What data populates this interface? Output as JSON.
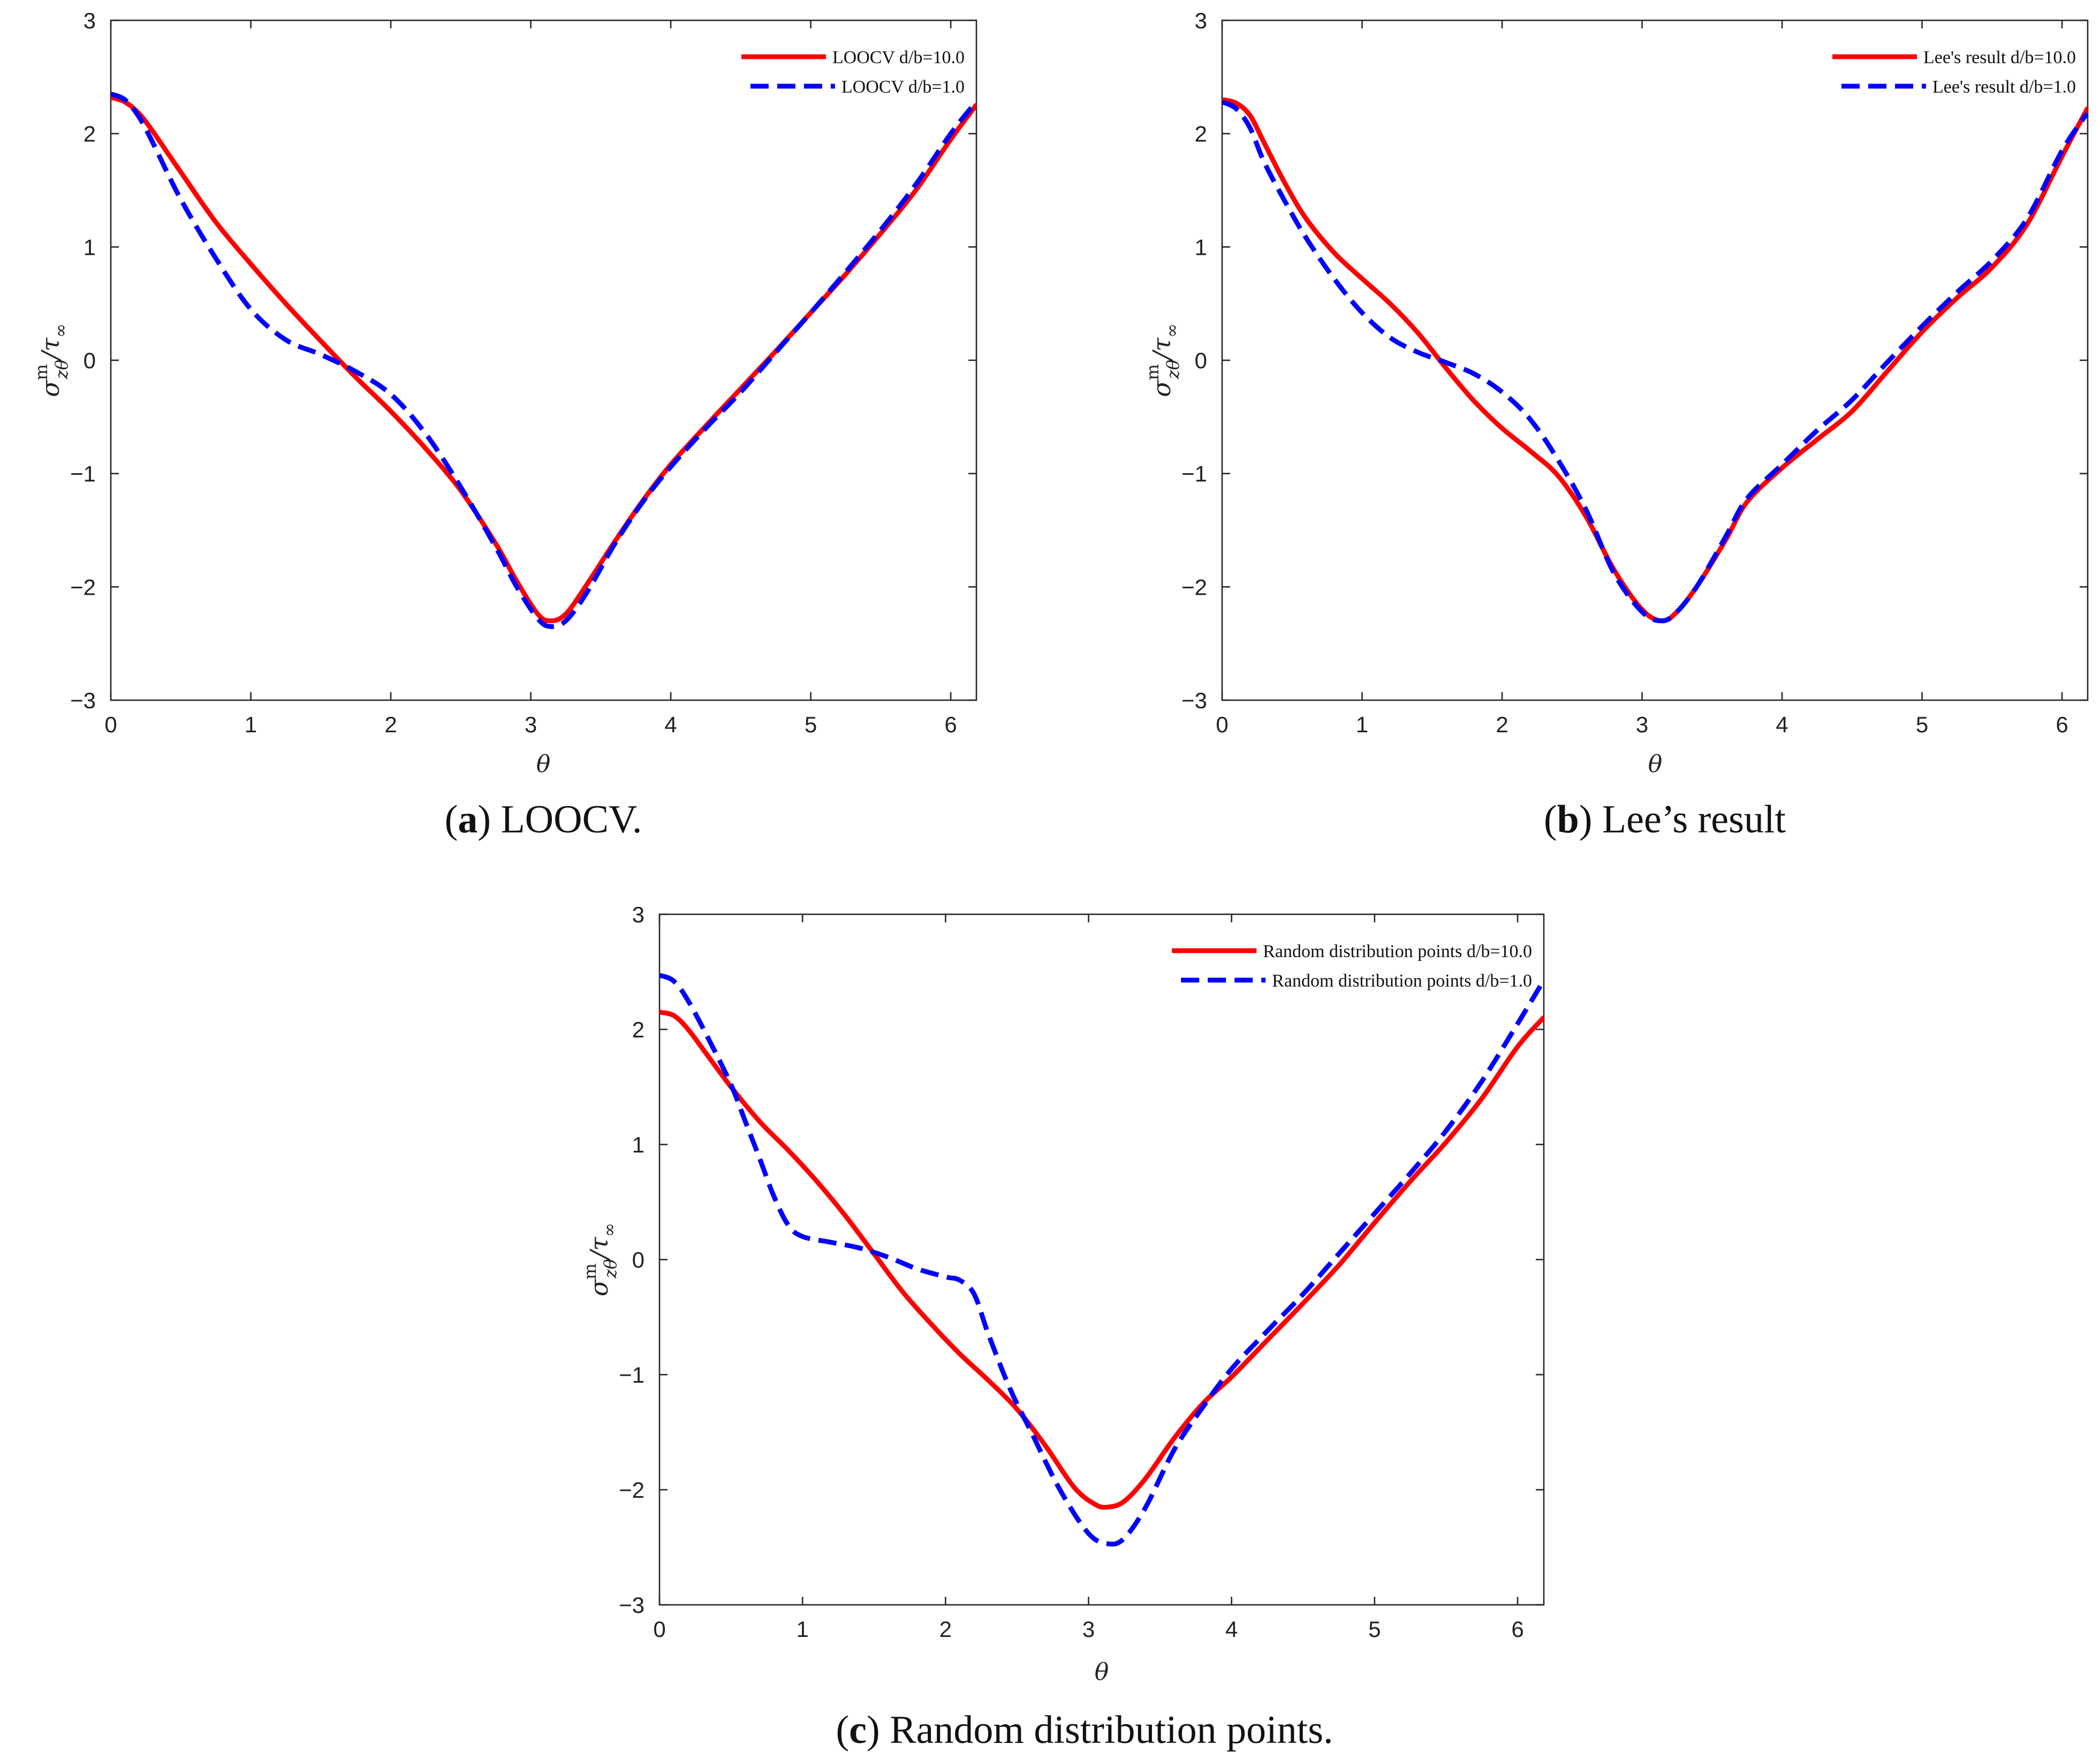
{
  "colors": {
    "solid": "#ff0000",
    "dashed": "#0000ff",
    "axis": "#262626"
  },
  "y_axis_label": {
    "sigma": "σ",
    "superscript": "m",
    "subscript": "zθ",
    "tau": "/τ",
    "tau_sub": "∞"
  },
  "chart_data": [
    {
      "type": "line",
      "caption": {
        "letter": "a",
        "text": "LOOCV."
      },
      "xlabel": "θ",
      "xlim": [
        0,
        6.1832
      ],
      "ylim": [
        -3,
        3
      ],
      "xticks": [
        "0",
        "1",
        "2",
        "3",
        "4",
        "5",
        "6"
      ],
      "yticks": [
        "−3",
        "−2",
        "−1",
        "0",
        "1",
        "2",
        "3"
      ],
      "legend_position": "top-right",
      "series": [
        {
          "name": "LOOCV d/b=10.0",
          "style": "solid",
          "x": [
            0,
            0.1,
            0.2,
            0.3,
            0.5,
            0.75,
            1.0,
            1.25,
            1.5,
            1.75,
            2.0,
            2.25,
            2.5,
            2.75,
            2.9,
            3.05,
            3.14,
            3.25,
            3.4,
            3.6,
            3.8,
            4.0,
            4.25,
            4.5,
            4.75,
            5.0,
            5.25,
            5.5,
            5.75,
            6.0,
            6.18
          ],
          "y": [
            2.32,
            2.28,
            2.18,
            2.02,
            1.66,
            1.22,
            0.85,
            0.5,
            0.17,
            -0.15,
            -0.45,
            -0.78,
            -1.15,
            -1.62,
            -1.95,
            -2.24,
            -2.3,
            -2.24,
            -1.98,
            -1.6,
            -1.24,
            -0.92,
            -0.58,
            -0.25,
            0.08,
            0.42,
            0.76,
            1.12,
            1.5,
            1.95,
            2.25
          ]
        },
        {
          "name": "LOOCV d/b=1.0",
          "style": "dashed",
          "x": [
            0,
            0.1,
            0.2,
            0.3,
            0.5,
            0.75,
            1.0,
            1.25,
            1.5,
            1.75,
            2.0,
            2.25,
            2.5,
            2.75,
            2.9,
            3.05,
            3.14,
            3.25,
            3.4,
            3.6,
            3.8,
            4.0,
            4.25,
            4.5,
            4.75,
            5.0,
            5.25,
            5.5,
            5.75,
            6.0,
            6.18
          ],
          "y": [
            2.35,
            2.3,
            2.15,
            1.92,
            1.42,
            0.9,
            0.45,
            0.18,
            0.05,
            -0.1,
            -0.3,
            -0.65,
            -1.12,
            -1.65,
            -2.0,
            -2.28,
            -2.35,
            -2.3,
            -2.05,
            -1.62,
            -1.25,
            -0.94,
            -0.6,
            -0.28,
            0.07,
            0.42,
            0.78,
            1.15,
            1.55,
            2.0,
            2.28
          ]
        }
      ]
    },
    {
      "type": "line",
      "caption": {
        "letter": "b",
        "text": "Lee’s result"
      },
      "xlabel": "θ",
      "xlim": [
        0,
        6.1832
      ],
      "ylim": [
        -3,
        3
      ],
      "xticks": [
        "0",
        "1",
        "2",
        "3",
        "4",
        "5",
        "6"
      ],
      "yticks": [
        "−3",
        "−2",
        "−1",
        "0",
        "1",
        "2",
        "3"
      ],
      "legend_position": "top-right",
      "series": [
        {
          "name": "Lee's result d/b=10.0",
          "style": "solid",
          "x": [
            0,
            0.1,
            0.2,
            0.3,
            0.45,
            0.6,
            0.8,
            1.0,
            1.2,
            1.4,
            1.6,
            1.8,
            2.0,
            2.2,
            2.4,
            2.6,
            2.8,
            3.0,
            3.14,
            3.25,
            3.4,
            3.6,
            3.75,
            4.0,
            4.25,
            4.5,
            4.75,
            5.0,
            5.25,
            5.5,
            5.75,
            6.0,
            6.18
          ],
          "y": [
            2.3,
            2.27,
            2.16,
            1.92,
            1.56,
            1.25,
            0.95,
            0.72,
            0.5,
            0.24,
            -0.07,
            -0.36,
            -0.6,
            -0.8,
            -1.02,
            -1.38,
            -1.85,
            -2.2,
            -2.3,
            -2.22,
            -1.98,
            -1.58,
            -1.25,
            -0.95,
            -0.7,
            -0.45,
            -0.1,
            0.25,
            0.55,
            0.82,
            1.2,
            1.8,
            2.22
          ]
        },
        {
          "name": "Lee's result d/b=1.0",
          "style": "dashed",
          "x": [
            0,
            0.1,
            0.2,
            0.3,
            0.45,
            0.6,
            0.8,
            1.0,
            1.2,
            1.4,
            1.6,
            1.8,
            2.0,
            2.2,
            2.4,
            2.6,
            2.8,
            3.0,
            3.14,
            3.25,
            3.4,
            3.6,
            3.75,
            4.0,
            4.25,
            4.5,
            4.75,
            5.0,
            5.25,
            5.5,
            5.75,
            6.0,
            6.18
          ],
          "y": [
            2.28,
            2.22,
            2.05,
            1.75,
            1.4,
            1.08,
            0.72,
            0.42,
            0.2,
            0.07,
            -0.02,
            -0.12,
            -0.28,
            -0.52,
            -0.88,
            -1.32,
            -1.88,
            -2.22,
            -2.3,
            -2.22,
            -1.98,
            -1.55,
            -1.22,
            -0.92,
            -0.62,
            -0.35,
            -0.02,
            0.3,
            0.6,
            0.88,
            1.25,
            1.85,
            2.18
          ]
        }
      ]
    },
    {
      "type": "line",
      "caption": {
        "letter": "c",
        "text": "Random distribution points."
      },
      "xlabel": "θ",
      "xlim": [
        0,
        6.1832
      ],
      "ylim": [
        -3,
        3
      ],
      "xticks": [
        "0",
        "1",
        "2",
        "3",
        "4",
        "5",
        "6"
      ],
      "yticks": [
        "−3",
        "−2",
        "−1",
        "0",
        "1",
        "2",
        "3"
      ],
      "legend_position": "top-right",
      "series": [
        {
          "name": "Random distribution points d/b=10.0",
          "style": "solid",
          "x": [
            0,
            0.1,
            0.2,
            0.35,
            0.5,
            0.7,
            0.9,
            1.1,
            1.3,
            1.5,
            1.7,
            1.9,
            2.1,
            2.3,
            2.5,
            2.7,
            2.9,
            3.05,
            3.14,
            3.25,
            3.4,
            3.6,
            3.8,
            4.0,
            4.25,
            4.5,
            4.75,
            5.0,
            5.25,
            5.5,
            5.75,
            6.0,
            6.18
          ],
          "y": [
            2.15,
            2.12,
            2.0,
            1.75,
            1.5,
            1.2,
            0.95,
            0.68,
            0.38,
            0.05,
            -0.28,
            -0.56,
            -0.82,
            -1.05,
            -1.3,
            -1.62,
            -1.98,
            -2.13,
            -2.15,
            -2.1,
            -1.9,
            -1.55,
            -1.25,
            -1.02,
            -0.7,
            -0.38,
            -0.05,
            0.32,
            0.68,
            1.02,
            1.4,
            1.85,
            2.1
          ]
        },
        {
          "name": "Random distribution points d/b=1.0",
          "style": "dashed",
          "x": [
            0,
            0.1,
            0.2,
            0.35,
            0.5,
            0.6,
            0.7,
            0.8,
            0.9,
            1.0,
            1.2,
            1.4,
            1.6,
            1.8,
            2.0,
            2.1,
            2.2,
            2.3,
            2.45,
            2.6,
            2.8,
            3.0,
            3.14,
            3.25,
            3.4,
            3.6,
            3.8,
            4.0,
            4.25,
            4.5,
            4.75,
            5.0,
            5.25,
            5.5,
            5.75,
            6.0,
            6.18
          ],
          "y": [
            2.47,
            2.42,
            2.25,
            1.9,
            1.52,
            1.2,
            0.88,
            0.55,
            0.3,
            0.2,
            0.15,
            0.1,
            0.02,
            -0.08,
            -0.15,
            -0.18,
            -0.3,
            -0.65,
            -1.12,
            -1.5,
            -2.0,
            -2.38,
            -2.47,
            -2.42,
            -2.15,
            -1.65,
            -1.28,
            -0.95,
            -0.62,
            -0.3,
            0.05,
            0.4,
            0.75,
            1.12,
            1.55,
            2.05,
            2.42
          ]
        }
      ]
    }
  ]
}
